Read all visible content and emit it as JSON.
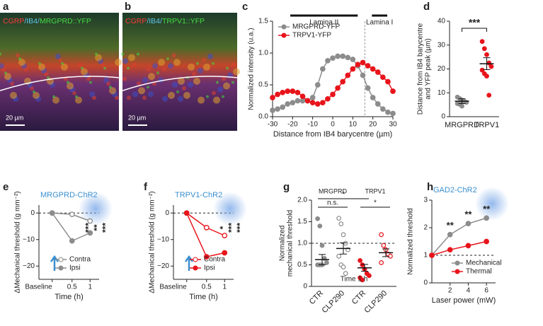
{
  "chart_data": [
    {
      "type": "image",
      "letter": "a",
      "label_segments": [
        {
          "text": "CGRP",
          "color": "#ff3b3b"
        },
        {
          "text": "/IB4/",
          "color": "#5ec8f0"
        },
        {
          "text": "MRGPRD::YFP",
          "color": "#44dd44"
        }
      ],
      "scale_bar": "20 µm"
    },
    {
      "type": "image",
      "letter": "b",
      "label_segments": [
        {
          "text": "CGRP",
          "color": "#ff3b3b"
        },
        {
          "text": "/IB4/",
          "color": "#5ec8f0"
        },
        {
          "text": "TRPV1::YFP",
          "color": "#44dd44"
        }
      ],
      "scale_bar": "20 µm"
    },
    {
      "type": "line",
      "letter": "c",
      "x": [
        -30,
        -27.5,
        -25,
        -22.5,
        -20,
        -17.5,
        -15,
        -12.5,
        -10,
        -7.5,
        -5,
        -2.5,
        0,
        2.5,
        5,
        7.5,
        10,
        12.5,
        15,
        17.5,
        20,
        22.5,
        25,
        27.5,
        30
      ],
      "series": [
        {
          "name": "MRGPRD-YFP",
          "color": "#8c8c8c",
          "filled": true,
          "values": [
            0.1,
            0.12,
            0.15,
            0.2,
            0.22,
            0.25,
            0.25,
            0.25,
            0.3,
            0.5,
            0.75,
            0.88,
            0.92,
            0.95,
            0.95,
            0.93,
            0.9,
            0.8,
            0.65,
            0.45,
            0.3,
            0.2,
            0.12,
            0.07,
            0.05
          ]
        },
        {
          "name": "TRPV1-YFP",
          "color": "#e8141b",
          "filled": true,
          "values": [
            0.3,
            0.35,
            0.38,
            0.4,
            0.4,
            0.38,
            0.32,
            0.25,
            0.22,
            0.2,
            0.22,
            0.28,
            0.35,
            0.45,
            0.55,
            0.65,
            0.75,
            0.82,
            0.85,
            0.8,
            0.75,
            0.7,
            0.62,
            0.55,
            0.4
          ]
        }
      ],
      "xlim": [
        -30,
        30
      ],
      "ylim": [
        0,
        1.5
      ],
      "xticks": [
        -30,
        -20,
        -10,
        0,
        10,
        20,
        30
      ],
      "yticks": [
        {
          "value": 0,
          "label": "0.0"
        },
        {
          "value": 0.5,
          "label": "0.5"
        },
        {
          "value": 1,
          "label": "1.0"
        },
        {
          "value": 1.5,
          "label": "1.5"
        }
      ],
      "xlabel": "Distance from IB4 barycentre (µm)",
      "ylabel": [
        "Normalized intensity (u.a.)"
      ],
      "regions": [
        "Lamina II",
        "Lamina I"
      ],
      "boundary_x": 16,
      "legend": "upper left"
    },
    {
      "type": "dot",
      "letter": "d",
      "categories": [
        "MRGPRD",
        "TRPV1"
      ],
      "points": [
        [
          8.2,
          7.6,
          7,
          6.5,
          6,
          5.5,
          5.2,
          4.4
        ],
        [
          31.5,
          28.5,
          26,
          22.5,
          21,
          19.5,
          18,
          17,
          9
        ]
      ],
      "means": [
        6.5,
        22.2
      ],
      "sems": [
        1.0,
        2.5
      ],
      "colors": [
        "#8c8c8c",
        "#e8141b"
      ],
      "filled": [
        true,
        true
      ],
      "ylim": [
        0,
        40
      ],
      "yticks": [
        0,
        10,
        20,
        30,
        40
      ],
      "ylabel": [
        "Distance from IB4 barycentre",
        "and YFP peak (µm)"
      ],
      "comparisons": [
        "***"
      ]
    },
    {
      "type": "line",
      "letter": "e",
      "title": "MRGPRD-ChR2",
      "title_color": "#3a8fd0",
      "categories": [
        "Baseline",
        "0.5",
        "1"
      ],
      "series": [
        {
          "name": "Contra",
          "color": "#8c8c8c",
          "filled": false,
          "values": [
            0,
            -0.5,
            -3
          ]
        },
        {
          "name": "Ipsi",
          "color": "#8c8c8c",
          "filled": true,
          "values": [
            0,
            -10.5,
            -7.5
          ]
        }
      ],
      "ylim": [
        -25,
        3
      ],
      "yticks": [
        0,
        {
          "value": -10,
          "label": "−10"
        },
        {
          "value": -20,
          "label": "−20"
        }
      ],
      "xlabel": "Time (h)",
      "ylabel": [
        "ΔMechanical threshold (g mm⁻²)"
      ],
      "reference_y": 0,
      "stars": [
        "***",
        "**",
        "***"
      ],
      "legend": "lower right"
    },
    {
      "type": "line",
      "letter": "f",
      "title": "TRPV1-ChR2",
      "title_color": "#3a8fd0",
      "categories": [
        "Baseline",
        "0.5",
        "1"
      ],
      "series": [
        {
          "name": "Contra",
          "color": "#e8141b",
          "filled": false,
          "values": [
            0,
            -5.5,
            -8.5
          ]
        },
        {
          "name": "Ipsi",
          "color": "#e8141b",
          "filled": true,
          "values": [
            0,
            -16.5,
            -15
          ]
        }
      ],
      "ylim": [
        -25,
        3
      ],
      "yticks": [
        0,
        {
          "value": -10,
          "label": "−10"
        },
        {
          "value": -20,
          "label": "−20"
        }
      ],
      "xlabel": "Time (h)",
      "ylabel": [
        "ΔMechanical threshold (g mm⁻²)"
      ],
      "reference_y": 0,
      "stars": [
        "*",
        "***",
        "***"
      ],
      "legend": "lower right"
    },
    {
      "type": "dot",
      "letter": "g",
      "categories": [
        "CTR",
        "CLP290",
        "CTR",
        "CLP290"
      ],
      "points": [
        [
          1.57,
          1.4,
          0.95,
          0.65,
          0.55,
          0.5,
          0.5,
          0.5
        ],
        [
          1.58,
          1.45,
          1.2,
          1.0,
          0.85,
          0.7,
          0.5,
          0.45,
          0.3
        ],
        [
          0.6,
          0.5,
          0.4,
          0.3,
          0.25,
          0.2,
          0.15
        ],
        [
          1.2,
          0.95,
          0.85,
          0.75,
          0.7,
          0.55
        ]
      ],
      "means": [
        0.62,
        0.88,
        0.43,
        0.78
      ],
      "sems": [
        0.12,
        0.13,
        0.08,
        0.09
      ],
      "colors": [
        "#8c8c8c",
        "#8c8c8c",
        "#e8141b",
        "#e8141b"
      ],
      "filled": [
        true,
        false,
        true,
        false
      ],
      "ylim": [
        0,
        2
      ],
      "yticks": [
        0,
        {
          "value": 0.5,
          "label": "0.5"
        },
        {
          "value": 1,
          "label": "1.0"
        },
        {
          "value": 1.5,
          "label": "1.5"
        },
        {
          "value": 2,
          "label": "2.0"
        }
      ],
      "ylabel": [
        "Normalized",
        "mechanical threshold"
      ],
      "reference_y": 1,
      "group_labels": [
        "MRGPRD",
        "TRPV1"
      ],
      "comparisons": [
        "n.s.",
        "*",
        "*"
      ],
      "note": "Time 1 h"
    },
    {
      "type": "line",
      "letter": "h",
      "title": "GAD2-ChR2",
      "title_color": "#3a8fd0",
      "x": [
        0,
        2,
        4,
        6
      ],
      "series": [
        {
          "name": "Mechanical",
          "color": "#8c8c8c",
          "filled": true,
          "values": [
            1,
            1.75,
            2.15,
            2.35
          ]
        },
        {
          "name": "Thermal",
          "color": "#e8141b",
          "filled": true,
          "values": [
            1,
            1.2,
            1.35,
            1.5
          ]
        }
      ],
      "xlim": [
        0,
        7
      ],
      "ylim": [
        0,
        3
      ],
      "xticks": [
        2,
        4,
        6
      ],
      "yticks": [
        0,
        1,
        2,
        3
      ],
      "xlabel": "Laser power (mW)",
      "ylabel": [
        "Normalized  threshold"
      ],
      "reference_y": 1,
      "stars": [
        "**",
        "**",
        "**"
      ],
      "legend": "lower right"
    }
  ]
}
